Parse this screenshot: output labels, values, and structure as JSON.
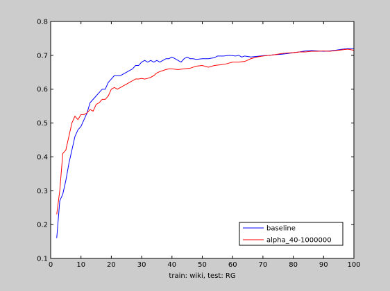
{
  "chart_data": {
    "type": "line",
    "title": "",
    "xlabel": "train: wiki, test: RG",
    "ylabel": "",
    "xlim": [
      0,
      100
    ],
    "ylim": [
      0.1,
      0.8
    ],
    "xticks": [
      0,
      10,
      20,
      30,
      40,
      50,
      60,
      70,
      80,
      90,
      100
    ],
    "yticks": [
      0.1,
      0.2,
      0.3,
      0.4,
      0.5,
      0.6,
      0.7,
      0.8
    ],
    "xtick_labels": [
      "0",
      "10",
      "20",
      "30",
      "40",
      "50",
      "60",
      "70",
      "80",
      "90",
      "100"
    ],
    "ytick_labels": [
      "0.1",
      "0.2",
      "0.3",
      "0.4",
      "0.5",
      "0.6",
      "0.7",
      "0.8"
    ],
    "grid": false,
    "legend_position": "bottom-right",
    "series": [
      {
        "name": "baseline",
        "color": "#0000ff",
        "points": [
          [
            2,
            0.16
          ],
          [
            3,
            0.27
          ],
          [
            4,
            0.29
          ],
          [
            5,
            0.33
          ],
          [
            6,
            0.38
          ],
          [
            7,
            0.42
          ],
          [
            8,
            0.46
          ],
          [
            9,
            0.48
          ],
          [
            10,
            0.49
          ],
          [
            11,
            0.51
          ],
          [
            12,
            0.53
          ],
          [
            13,
            0.56
          ],
          [
            14,
            0.57
          ],
          [
            15,
            0.58
          ],
          [
            16,
            0.59
          ],
          [
            17,
            0.6
          ],
          [
            18,
            0.6
          ],
          [
            19,
            0.62
          ],
          [
            20,
            0.63
          ],
          [
            21,
            0.64
          ],
          [
            22,
            0.64
          ],
          [
            23,
            0.64
          ],
          [
            24,
            0.645
          ],
          [
            25,
            0.65
          ],
          [
            26,
            0.655
          ],
          [
            27,
            0.66
          ],
          [
            28,
            0.67
          ],
          [
            29,
            0.67
          ],
          [
            30,
            0.68
          ],
          [
            31,
            0.685
          ],
          [
            32,
            0.68
          ],
          [
            33,
            0.685
          ],
          [
            34,
            0.68
          ],
          [
            35,
            0.685
          ],
          [
            36,
            0.68
          ],
          [
            37,
            0.685
          ],
          [
            38,
            0.69
          ],
          [
            39,
            0.69
          ],
          [
            40,
            0.695
          ],
          [
            41,
            0.69
          ],
          [
            42,
            0.685
          ],
          [
            43,
            0.68
          ],
          [
            44,
            0.69
          ],
          [
            45,
            0.695
          ],
          [
            46,
            0.69
          ],
          [
            47,
            0.69
          ],
          [
            48,
            0.688
          ],
          [
            50,
            0.69
          ],
          [
            52,
            0.69
          ],
          [
            54,
            0.693
          ],
          [
            55,
            0.698
          ],
          [
            57,
            0.698
          ],
          [
            59,
            0.7
          ],
          [
            61,
            0.698
          ],
          [
            62,
            0.7
          ],
          [
            63,
            0.695
          ],
          [
            64,
            0.698
          ],
          [
            66,
            0.695
          ],
          [
            68,
            0.697
          ],
          [
            70,
            0.699
          ],
          [
            72,
            0.7
          ],
          [
            74,
            0.702
          ],
          [
            76,
            0.703
          ],
          [
            78,
            0.705
          ],
          [
            80,
            0.708
          ],
          [
            82,
            0.71
          ],
          [
            84,
            0.713
          ],
          [
            86,
            0.714
          ],
          [
            88,
            0.713
          ],
          [
            90,
            0.712
          ],
          [
            92,
            0.713
          ],
          [
            94,
            0.715
          ],
          [
            96,
            0.718
          ],
          [
            98,
            0.72
          ],
          [
            100,
            0.72
          ]
        ]
      },
      {
        "name": "alpha_40-1000000",
        "color": "#ff0000",
        "points": [
          [
            2,
            0.23
          ],
          [
            3,
            0.3
          ],
          [
            4,
            0.41
          ],
          [
            5,
            0.42
          ],
          [
            6,
            0.46
          ],
          [
            7,
            0.5
          ],
          [
            8,
            0.52
          ],
          [
            9,
            0.51
          ],
          [
            10,
            0.525
          ],
          [
            11,
            0.525
          ],
          [
            12,
            0.53
          ],
          [
            13,
            0.54
          ],
          [
            14,
            0.535
          ],
          [
            15,
            0.555
          ],
          [
            16,
            0.56
          ],
          [
            17,
            0.57
          ],
          [
            18,
            0.57
          ],
          [
            19,
            0.58
          ],
          [
            20,
            0.6
          ],
          [
            21,
            0.605
          ],
          [
            22,
            0.6
          ],
          [
            23,
            0.605
          ],
          [
            24,
            0.61
          ],
          [
            25,
            0.615
          ],
          [
            26,
            0.62
          ],
          [
            27,
            0.625
          ],
          [
            28,
            0.63
          ],
          [
            29,
            0.63
          ],
          [
            30,
            0.632
          ],
          [
            31,
            0.63
          ],
          [
            32,
            0.632
          ],
          [
            33,
            0.635
          ],
          [
            34,
            0.64
          ],
          [
            35,
            0.648
          ],
          [
            36,
            0.652
          ],
          [
            37,
            0.655
          ],
          [
            38,
            0.658
          ],
          [
            39,
            0.66
          ],
          [
            40,
            0.66
          ],
          [
            42,
            0.658
          ],
          [
            44,
            0.66
          ],
          [
            46,
            0.662
          ],
          [
            47,
            0.665
          ],
          [
            48,
            0.668
          ],
          [
            50,
            0.67
          ],
          [
            52,
            0.665
          ],
          [
            54,
            0.67
          ],
          [
            56,
            0.672
          ],
          [
            58,
            0.675
          ],
          [
            60,
            0.68
          ],
          [
            62,
            0.68
          ],
          [
            64,
            0.682
          ],
          [
            66,
            0.69
          ],
          [
            68,
            0.695
          ],
          [
            70,
            0.698
          ],
          [
            72,
            0.7
          ],
          [
            74,
            0.702
          ],
          [
            76,
            0.705
          ],
          [
            78,
            0.707
          ],
          [
            80,
            0.708
          ],
          [
            82,
            0.71
          ],
          [
            84,
            0.71
          ],
          [
            86,
            0.712
          ],
          [
            88,
            0.712
          ],
          [
            90,
            0.713
          ],
          [
            92,
            0.712
          ],
          [
            94,
            0.714
          ],
          [
            96,
            0.716
          ],
          [
            98,
            0.718
          ],
          [
            100,
            0.715
          ]
        ]
      }
    ]
  }
}
